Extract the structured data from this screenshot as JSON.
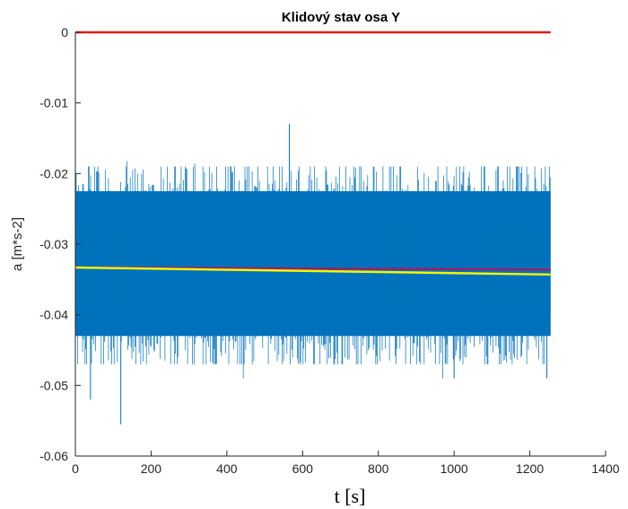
{
  "chart_data": {
    "type": "line",
    "title": "Klidový stav osa Y",
    "xlabel": "t [s]",
    "ylabel": "a [m*s-2]",
    "xlim": [
      0,
      1400
    ],
    "ylim": [
      -0.06,
      0
    ],
    "xticks": [
      0,
      200,
      400,
      600,
      800,
      1000,
      1200,
      1400
    ],
    "yticks": [
      0,
      -0.01,
      -0.02,
      -0.03,
      -0.04,
      -0.05,
      -0.06
    ],
    "xtick_labels": [
      "0",
      "200",
      "400",
      "600",
      "800",
      "1000",
      "1200",
      "1400"
    ],
    "ytick_labels": [
      "0",
      "-0.01",
      "-0.02",
      "-0.03",
      "-0.04",
      "-0.05",
      "-0.06"
    ],
    "grid": false,
    "series": [
      {
        "kind": "noise-band",
        "color": "#0072BD",
        "x_range": [
          0,
          1255
        ],
        "mean": -0.0335,
        "dense_band": [
          -0.043,
          -0.0225
        ],
        "typical_extremes": [
          -0.047,
          -0.019
        ],
        "outliers": [
          {
            "x": 40,
            "y": -0.052
          },
          {
            "x": 120,
            "y": -0.0555
          },
          {
            "x": 565,
            "y": -0.013
          },
          {
            "x": 1000,
            "y": -0.049
          },
          {
            "x": 1245,
            "y": -0.049
          }
        ]
      },
      {
        "kind": "line",
        "color": "#E41A1C",
        "x": [
          0,
          1255
        ],
        "y": [
          0,
          0
        ]
      },
      {
        "kind": "line",
        "color": "#9E1F63",
        "x": [
          0,
          1255
        ],
        "y": [
          -0.0333,
          -0.0336
        ]
      },
      {
        "kind": "line",
        "color": "#F5F500",
        "x": [
          0,
          1255
        ],
        "y": [
          -0.0333,
          -0.0343
        ]
      }
    ]
  }
}
